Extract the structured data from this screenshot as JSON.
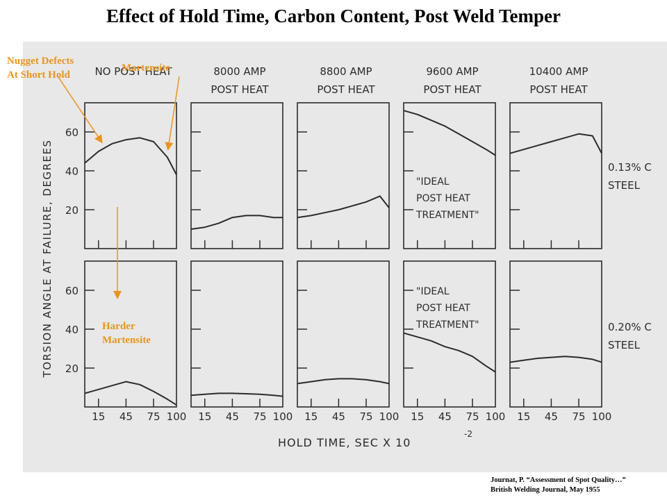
{
  "title": "Effect of Hold Time, Carbon Content, Post Weld Temper",
  "annotations": {
    "nugget_defects_line1": "Nugget Defects",
    "nugget_defects_line2": "At Short Hold",
    "martensite": "Martensite",
    "harder_line1": "Harder",
    "harder_line2": "Martensite"
  },
  "citation": {
    "line1": "Journat, P. “Assessment of Spot Quality…”",
    "line2": "British Welding Journal, May 1955"
  },
  "colors": {
    "annotation": "#e8941f",
    "background_scan": "#e8e8e8",
    "ink": "#2b2b2b"
  },
  "chart_data": {
    "type": "line",
    "xlabel": "HOLD TIME, SEC X 10",
    "xlabel_exponent": "-2",
    "ylabel": "TORSION ANGLE AT FAILURE, DEGREES",
    "xlim": [
      0,
      100
    ],
    "ylim": [
      0,
      75
    ],
    "yticks": [
      20,
      40,
      60
    ],
    "xticks": [
      15,
      45,
      75,
      100
    ],
    "grid": false,
    "columns": [
      {
        "line1": "NO POST HEAT",
        "line2": ""
      },
      {
        "line1": "8000 AMP",
        "line2": "POST HEAT"
      },
      {
        "line1": "8800 AMP",
        "line2": "POST HEAT"
      },
      {
        "line1": "9600 AMP",
        "line2": "POST HEAT"
      },
      {
        "line1": "10400 AMP",
        "line2": "POST HEAT"
      }
    ],
    "rows": [
      {
        "line1": "0.13% C",
        "line2": "STEEL"
      },
      {
        "line1": "0.20% C",
        "line2": "STEEL"
      }
    ],
    "box_labels": [
      {
        "row": 0,
        "col": 3,
        "lines": [
          "\"IDEAL",
          "POST HEAT",
          "TREATMENT\""
        ]
      },
      {
        "row": 1,
        "col": 3,
        "lines": [
          "\"IDEAL",
          "POST HEAT",
          "TREATMENT\""
        ]
      }
    ],
    "panels": [
      {
        "row": 0,
        "col": 0,
        "x": [
          0,
          15,
          30,
          45,
          60,
          75,
          90,
          100
        ],
        "y": [
          44,
          50,
          54,
          56,
          57,
          55,
          47,
          38
        ]
      },
      {
        "row": 0,
        "col": 1,
        "x": [
          0,
          15,
          30,
          45,
          60,
          75,
          90,
          100
        ],
        "y": [
          10,
          11,
          13,
          16,
          17,
          17,
          16,
          16
        ]
      },
      {
        "row": 0,
        "col": 2,
        "x": [
          0,
          15,
          30,
          45,
          60,
          75,
          90,
          100
        ],
        "y": [
          16,
          17,
          18.5,
          20,
          22,
          24,
          27,
          21
        ]
      },
      {
        "row": 0,
        "col": 3,
        "x": [
          0,
          15,
          30,
          45,
          60,
          75,
          90,
          100
        ],
        "y": [
          71,
          69,
          66,
          63,
          59,
          55,
          51,
          48
        ]
      },
      {
        "row": 0,
        "col": 4,
        "x": [
          0,
          15,
          30,
          45,
          60,
          75,
          90,
          100
        ],
        "y": [
          49,
          51,
          53,
          55,
          57,
          59,
          58,
          49
        ]
      },
      {
        "row": 1,
        "col": 0,
        "x": [
          0,
          15,
          30,
          45,
          60,
          75,
          90,
          100
        ],
        "y": [
          7,
          9,
          11,
          13,
          11.5,
          8,
          4,
          1
        ]
      },
      {
        "row": 1,
        "col": 1,
        "x": [
          0,
          15,
          30,
          45,
          60,
          75,
          90,
          100
        ],
        "y": [
          6,
          6.5,
          7,
          7,
          6.8,
          6.5,
          6,
          5.5
        ]
      },
      {
        "row": 1,
        "col": 2,
        "x": [
          0,
          15,
          30,
          45,
          60,
          75,
          90,
          100
        ],
        "y": [
          12,
          13,
          14,
          14.5,
          14.5,
          14,
          13,
          12
        ]
      },
      {
        "row": 1,
        "col": 3,
        "x": [
          0,
          15,
          30,
          45,
          60,
          75,
          90,
          100
        ],
        "y": [
          38,
          36,
          34,
          31,
          29,
          26,
          21,
          18
        ]
      },
      {
        "row": 1,
        "col": 4,
        "x": [
          0,
          15,
          30,
          45,
          60,
          75,
          90,
          100
        ],
        "y": [
          23,
          24,
          25,
          25.5,
          26,
          25.5,
          24.5,
          23
        ]
      }
    ]
  }
}
